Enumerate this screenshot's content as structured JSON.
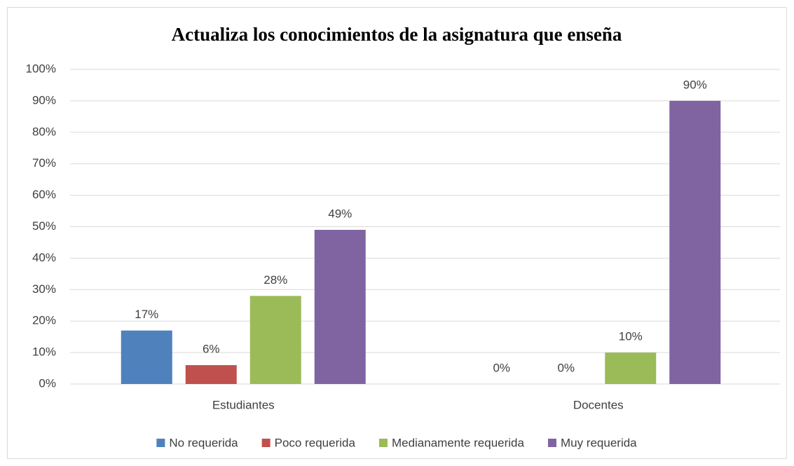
{
  "chart_data": {
    "type": "bar",
    "title": "Actualiza los conocimientos de la asignatura que enseña",
    "categories": [
      "Estudiantes",
      "Docentes"
    ],
    "series": [
      {
        "name": "No requerida",
        "color": "#4f81bd",
        "values": [
          17,
          0
        ],
        "value_labels": [
          "17%",
          "0%"
        ]
      },
      {
        "name": "Poco requerida",
        "color": "#c0504d",
        "values": [
          6,
          0
        ],
        "value_labels": [
          "6%",
          "0%"
        ]
      },
      {
        "name": "Medianamente requerida",
        "color": "#9bbb59",
        "values": [
          28,
          10
        ],
        "value_labels": [
          "28%",
          "10%"
        ]
      },
      {
        "name": "Muy requerida",
        "color": "#8064a2",
        "values": [
          49,
          90
        ],
        "value_labels": [
          "49%",
          "90%"
        ]
      }
    ],
    "ylim": [
      0,
      100
    ],
    "yticks": [
      {
        "value": 0,
        "label": "0%"
      },
      {
        "value": 10,
        "label": "10%"
      },
      {
        "value": 20,
        "label": "20%"
      },
      {
        "value": 30,
        "label": "30%"
      },
      {
        "value": 40,
        "label": "40%"
      },
      {
        "value": 50,
        "label": "50%"
      },
      {
        "value": 60,
        "label": "60%"
      },
      {
        "value": 70,
        "label": "70%"
      },
      {
        "value": 80,
        "label": "80%"
      },
      {
        "value": 90,
        "label": "90%"
      },
      {
        "value": 100,
        "label": "100%"
      }
    ],
    "grid": true,
    "legend": "bottom"
  }
}
